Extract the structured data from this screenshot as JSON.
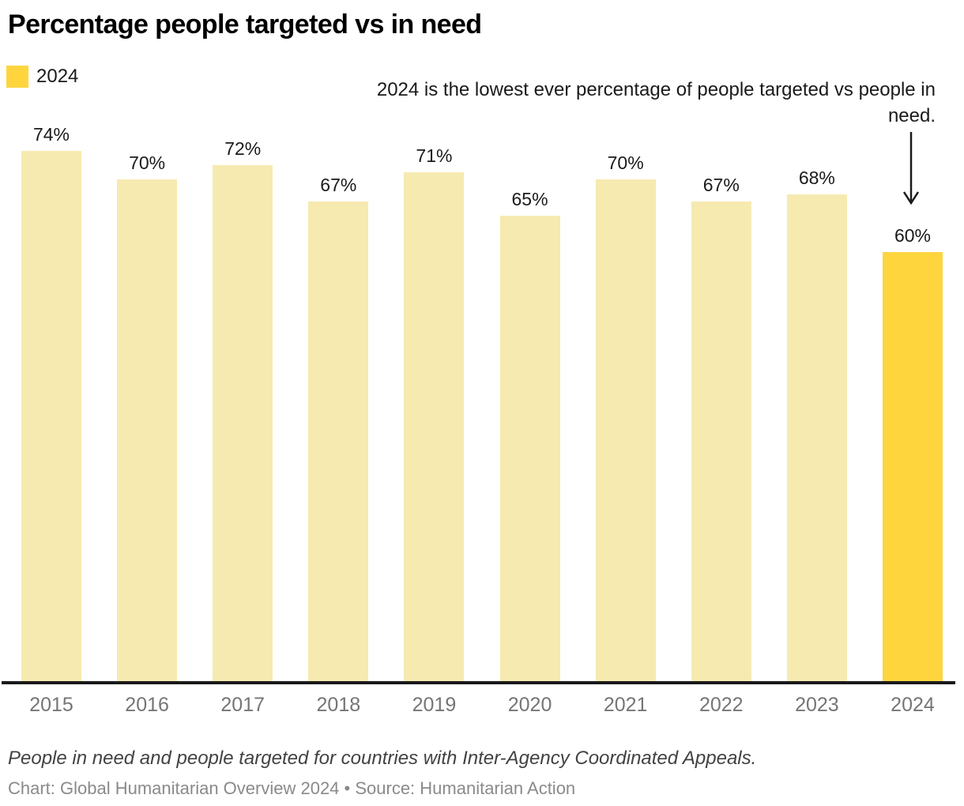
{
  "header": {
    "title": "Percentage people targeted vs in need"
  },
  "legend": {
    "label": "2024",
    "swatch_color": "#ffd53e"
  },
  "annotation": {
    "text": "2024 is the lowest ever percentage of people targeted vs people in need.",
    "arrow": "down-arrow"
  },
  "chart_data": {
    "type": "bar",
    "title": "Percentage people targeted vs in need",
    "categories": [
      "2015",
      "2016",
      "2017",
      "2018",
      "2019",
      "2020",
      "2021",
      "2022",
      "2023",
      "2024"
    ],
    "values": [
      74,
      70,
      72,
      67,
      71,
      65,
      70,
      67,
      68,
      60
    ],
    "labels": [
      "74%",
      "70%",
      "72%",
      "67%",
      "71%",
      "65%",
      "70%",
      "67%",
      "68%",
      "60%"
    ],
    "unit": "%",
    "xlabel": "",
    "ylabel": "",
    "ylim": [
      0,
      74
    ],
    "grid": false,
    "legend_position": "top-left",
    "bar_color": "#f6eab0",
    "highlight_category": "2024",
    "highlight_color": "#ffd53e",
    "axis_color": "#1a1a1a"
  },
  "footer": {
    "caption": "People in need and people targeted for countries with Inter-Agency Coordinated Appeals.",
    "credit": "Chart: Global Humanitarian Overview 2024 • Source: Humanitarian Action"
  }
}
